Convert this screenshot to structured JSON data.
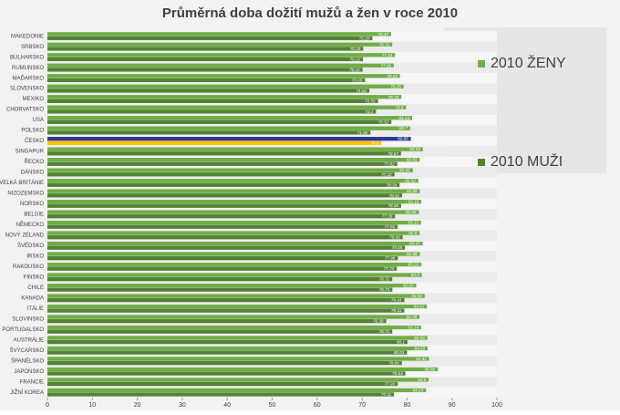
{
  "chart_data": {
    "type": "hbar",
    "title": "Průměrná doba dožití mužů a žen v roce 2010",
    "categories": [
      "MAKEDONIE",
      "SRBSKO",
      "BULHARSKO",
      "RUMUNSKO",
      "MAĎARSKO",
      "SLOVENSKO",
      "MEXIKO",
      "CHORVATSKO",
      "USA",
      "POLSKO",
      "ČESKO",
      "SINGAPUR",
      "ŘECKO",
      "DÁNSKO",
      "VELKÁ BRITÁNIE",
      "NIZOZEMSKO",
      "NORSKO",
      "BELGIE",
      "NĚMECKO",
      "NOVÝ ZÉLAND",
      "ŠVÉDSKO",
      "IRSKO",
      "RAKOUSKO",
      "FINSKO",
      "CHILE",
      "KANADA",
      "ITÁLIE",
      "SLOVINSKO",
      "PORTUGALSKO",
      "AUSTRÁLIE",
      "ŠVÝCARSKO",
      "ŠPANĚLSKO",
      "JAPONSKO",
      "FRANCIE",
      "JIŽNÍ KOREA"
    ],
    "series": [
      {
        "name": "2010 ŽENY",
        "color": "#70ad47",
        "colors": [
          "#70ad47",
          "#70ad47",
          "#70ad47",
          "#70ad47",
          "#70ad47",
          "#70ad47",
          "#70ad47",
          "#70ad47",
          "#70ad47",
          "#70ad47",
          "#2b3990",
          "#70ad47",
          "#70ad47",
          "#70ad47",
          "#70ad47",
          "#70ad47",
          "#70ad47",
          "#70ad47",
          "#70ad47",
          "#70ad47",
          "#70ad47",
          "#70ad47",
          "#70ad47",
          "#70ad47",
          "#70ad47",
          "#70ad47",
          "#70ad47",
          "#70ad47",
          "#70ad47",
          "#70ad47",
          "#70ad47",
          "#70ad47",
          "#70ad47",
          "#70ad47",
          "#70ad47"
        ],
        "values": [
          76.47,
          76.71,
          77.33,
          77.06,
          78.43,
          79.25,
          78.73,
          79.8,
          81.14,
          80.7,
          80.85,
          83.54,
          82.83,
          81.31,
          82.52,
          82.85,
          83.18,
          82.65,
          83.13,
          82.8,
          83.47,
          82.88,
          83.21,
          83.3,
          82.05,
          83.94,
          84.41,
          82.78,
          83.14,
          84.53,
          84.59,
          84.91,
          86.86,
          84.8,
          84.23
        ]
      },
      {
        "name": "2010 MUŽI",
        "color": "#548235",
        "colors": [
          "#548235",
          "#548235",
          "#548235",
          "#548235",
          "#548235",
          "#548235",
          "#548235",
          "#548235",
          "#548235",
          "#548235",
          "#ffc000",
          "#548235",
          "#548235",
          "#548235",
          "#548235",
          "#548235",
          "#548235",
          "#548235",
          "#548235",
          "#548235",
          "#548235",
          "#548235",
          "#548235",
          "#548235",
          "#548235",
          "#548235",
          "#548235",
          "#548235",
          "#548235",
          "#548235",
          "#548235",
          "#548235",
          "#548235",
          "#548235",
          "#548235"
        ],
        "values": [
          72.29,
          70.25,
          70.21,
          70.12,
          70.65,
          71.62,
          73.55,
          73.1,
          76.52,
          71.86,
          74.3,
          78.67,
          77.82,
          77.22,
          78.34,
          78.91,
          78.69,
          77.35,
          77.91,
          79.03,
          79.55,
          77.96,
          77.73,
          76.72,
          76.74,
          79.41,
          79.41,
          75.38,
          76.71,
          80.1,
          80.01,
          78.86,
          79.64,
          77.93,
          77.11
        ]
      }
    ],
    "xlim": [
      0,
      100
    ],
    "xticks": [
      0,
      10,
      20,
      30,
      40,
      50,
      60,
      70,
      80,
      90,
      100
    ]
  }
}
